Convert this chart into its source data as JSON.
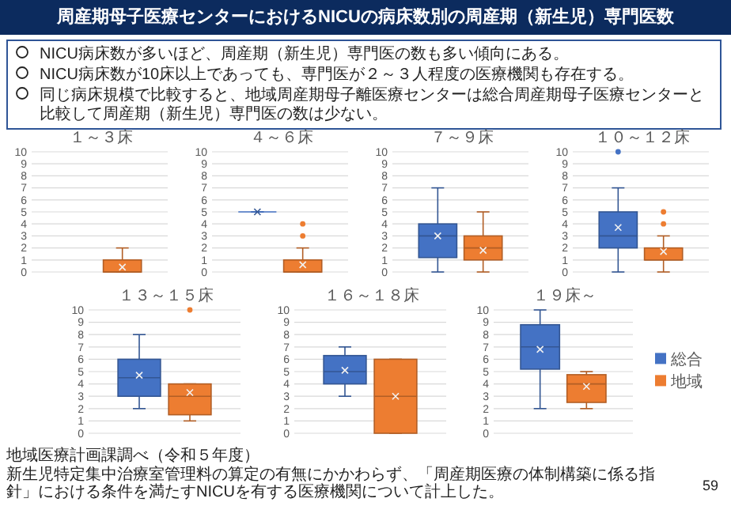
{
  "chart_data": [
    {
      "type": "other",
      "title": "周産期母子医療センターにおけるNICUの病床数別の周産期（新生児）専門医数",
      "annotations": [
        "NICU病床数が多いほど、周産期（新生児）専門医の数も多い傾向にある。",
        "NICU病床数が10床以上であっても、専門医が２～３人程度の医療機関も存在する。",
        "同じ病床規模で比較すると、地域周産期母子離医療センターは総合周産期母子医療センターと比較して周産期（新生児）専門医の数は少ない。",
        "地域医療計画課調べ（令和５年度）",
        "新生児特定集中治療室管理料の算定の有無にかかわらず、「周産期医療の体制構築に係る指針」における条件を満たすNICUを有する医療機関について計上した。",
        "59"
      ]
    },
    {
      "type": "box",
      "title": "１～３床",
      "categories": [
        null
      ],
      "ylim": [
        0,
        10
      ],
      "yticks": [
        0,
        1,
        2,
        3,
        4,
        5,
        6,
        7,
        8,
        9,
        10
      ],
      "grid": "y",
      "series": [
        {
          "color": "#4472c4",
          "boxes": [
            null
          ]
        },
        {
          "color": "#ed7d31",
          "boxes": [
            {
              "low": 0,
              "q1": 0,
              "median": 0,
              "q3": 1,
              "high": 2,
              "mean": 0.4
            }
          ]
        }
      ]
    },
    {
      "type": "box",
      "title": "４～６床",
      "categories": [
        null
      ],
      "ylim": [
        0,
        10
      ],
      "yticks": [
        0,
        1,
        2,
        3,
        4,
        5,
        6,
        7,
        8,
        9,
        10
      ],
      "grid": "y",
      "series": [
        {
          "color": "#4472c4",
          "boxes": [
            {
              "low": 5,
              "q1": 5,
              "median": 5,
              "q3": 5,
              "high": 5,
              "mean": 5
            }
          ]
        },
        {
          "color": "#ed7d31",
          "boxes": [
            {
              "low": 0,
              "q1": 0,
              "median": 0,
              "q3": 1,
              "high": 2,
              "mean": 0.6,
              "outliers": [
                3,
                4
              ]
            }
          ]
        }
      ]
    },
    {
      "type": "box",
      "title": "７～９床",
      "categories": [
        null
      ],
      "ylim": [
        0,
        10
      ],
      "yticks": [
        0,
        1,
        2,
        3,
        4,
        5,
        6,
        7,
        8,
        9,
        10
      ],
      "grid": "y",
      "series": [
        {
          "color": "#4472c4",
          "boxes": [
            {
              "low": 0,
              "q1": 1.2,
              "median": 3,
              "q3": 4,
              "high": 7,
              "mean": 3
            }
          ]
        },
        {
          "color": "#ed7d31",
          "boxes": [
            {
              "low": 0,
              "q1": 1,
              "median": 2,
              "q3": 3,
              "high": 5,
              "mean": 1.8
            }
          ]
        }
      ]
    },
    {
      "type": "box",
      "title": "１０～１２床",
      "categories": [
        null
      ],
      "ylim": [
        0,
        10
      ],
      "yticks": [
        0,
        1,
        2,
        3,
        4,
        5,
        6,
        7,
        8,
        9,
        10
      ],
      "grid": "y",
      "series": [
        {
          "color": "#4472c4",
          "boxes": [
            {
              "low": 0,
              "q1": 2,
              "median": 3,
              "q3": 5,
              "high": 7,
              "mean": 3.7,
              "outliers": [
                10
              ]
            }
          ]
        },
        {
          "color": "#ed7d31",
          "boxes": [
            {
              "low": 0,
              "q1": 1,
              "median": 1,
              "q3": 2,
              "high": 3,
              "mean": 1.7,
              "outliers": [
                4,
                5
              ]
            }
          ]
        }
      ]
    },
    {
      "type": "box",
      "title": "１３～１５床",
      "categories": [
        null
      ],
      "ylim": [
        0,
        10
      ],
      "yticks": [
        0,
        1,
        2,
        3,
        4,
        5,
        6,
        7,
        8,
        9,
        10
      ],
      "grid": "y",
      "series": [
        {
          "color": "#4472c4",
          "boxes": [
            {
              "low": 2,
              "q1": 3,
              "median": 4.5,
              "q3": 6,
              "high": 8,
              "mean": 4.7
            }
          ]
        },
        {
          "color": "#ed7d31",
          "boxes": [
            {
              "low": 1,
              "q1": 1.5,
              "median": 3,
              "q3": 4,
              "high": 4,
              "mean": 3.3,
              "outliers": [
                10
              ]
            }
          ]
        }
      ]
    },
    {
      "type": "box",
      "title": "１６～１８床",
      "categories": [
        null
      ],
      "ylim": [
        0,
        10
      ],
      "yticks": [
        0,
        1,
        2,
        3,
        4,
        5,
        6,
        7,
        8,
        9,
        10
      ],
      "grid": "y",
      "series": [
        {
          "color": "#4472c4",
          "boxes": [
            {
              "low": 3,
              "q1": 4,
              "median": 5,
              "q3": 6.3,
              "high": 7,
              "mean": 5.1
            }
          ]
        },
        {
          "color": "#ed7d31",
          "boxes": [
            {
              "low": 0,
              "q1": 0,
              "median": 3,
              "q3": 6,
              "high": 6,
              "mean": 3
            }
          ]
        }
      ]
    },
    {
      "type": "box",
      "title": "１９床～",
      "categories": [
        null
      ],
      "ylim": [
        0,
        10
      ],
      "yticks": [
        0,
        1,
        2,
        3,
        4,
        5,
        6,
        7,
        8,
        9,
        10
      ],
      "grid": "y",
      "legend": "right",
      "series": [
        {
          "name": "総合",
          "color": "#4472c4",
          "boxes": [
            {
              "low": 2,
              "q1": 5.2,
              "median": 7,
              "q3": 8.8,
              "high": 10,
              "mean": 6.8
            }
          ]
        },
        {
          "name": "地域",
          "color": "#ed7d31",
          "boxes": [
            {
              "low": 2,
              "q1": 2.5,
              "median": 4,
              "q3": 4.75,
              "high": 5,
              "mean": 3.8
            }
          ]
        }
      ]
    }
  ]
}
